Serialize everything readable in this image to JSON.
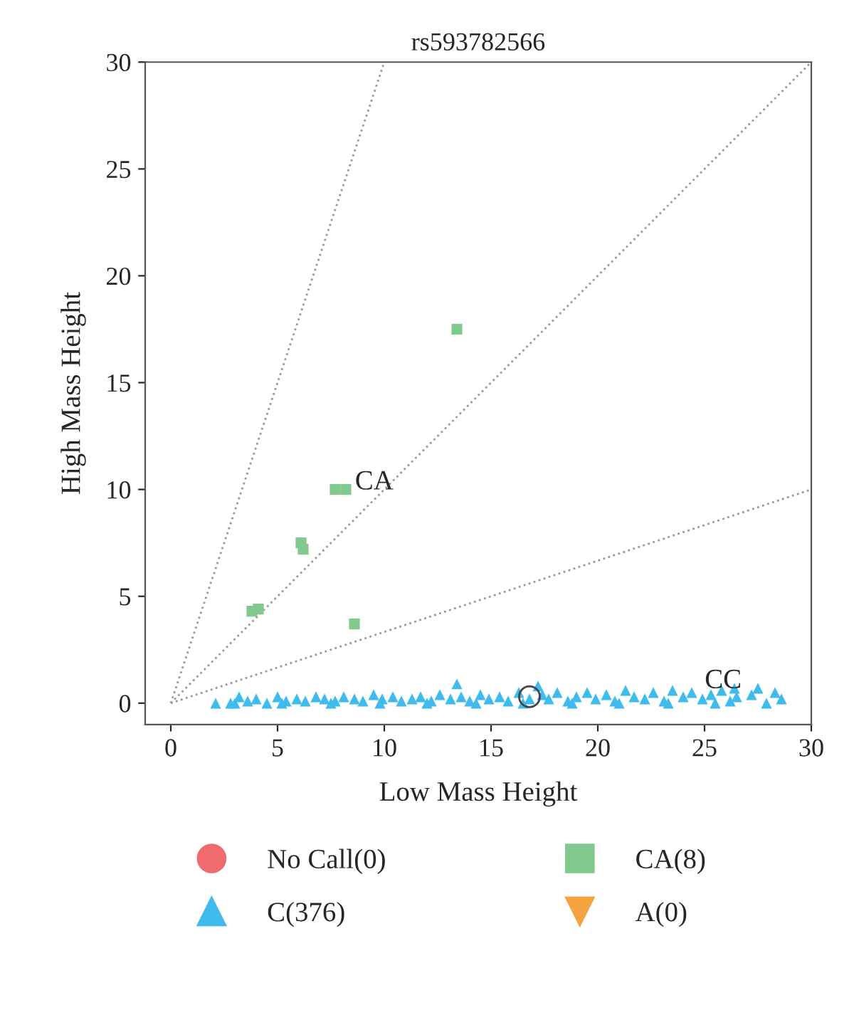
{
  "chart_data": {
    "type": "scatter",
    "title": "rs593782566",
    "xlabel": "Low Mass Height",
    "ylabel": "High Mass Height",
    "xlim": [
      -1.2,
      30
    ],
    "ylim": [
      -1,
      30
    ],
    "xticks": [
      0,
      5,
      10,
      15,
      20,
      25,
      30
    ],
    "yticks": [
      0,
      5,
      10,
      15,
      20,
      25,
      30
    ],
    "grid": false,
    "legend": "bottom",
    "series": [
      {
        "name": "No Call(0)",
        "color": "#ee6b6e",
        "marker": "circle"
      },
      {
        "name": "CA(8)",
        "color": "#82c98d",
        "marker": "square",
        "x": [
          13.4,
          7.7,
          8.2,
          6.1,
          6.2,
          3.8,
          4.1,
          8.6
        ],
        "values": [
          17.5,
          10,
          10,
          7.5,
          7.2,
          4.3,
          4.4,
          3.7
        ]
      },
      {
        "name": "C(376)",
        "color": "#3fbcec",
        "marker": "triangle",
        "x": [
          2.1,
          2.8,
          3.2,
          3.6,
          4.0,
          4.5,
          5.0,
          5.4,
          5.9,
          6.3,
          6.8,
          7.2,
          7.7,
          8.1,
          8.6,
          9.0,
          9.5,
          9.9,
          10.4,
          10.8,
          11.3,
          11.7,
          12.2,
          12.6,
          13.1,
          13.4,
          13.6,
          14.0,
          14.5,
          14.9,
          15.4,
          15.8,
          16.3,
          16.8,
          17.2,
          17.4,
          17.7,
          18.1,
          18.6,
          19.0,
          19.5,
          19.9,
          20.4,
          20.8,
          21.3,
          21.7,
          22.2,
          22.6,
          23.1,
          23.5,
          24.0,
          24.4,
          24.9,
          25.3,
          25.8,
          26.2,
          26.4,
          26.5,
          27.2,
          27.5,
          27.9,
          28.3,
          28.6,
          3.0,
          5.2,
          7.5,
          9.8,
          12.0,
          14.3,
          16.5,
          18.8,
          21.0,
          23.3,
          25.5
        ],
        "values": [
          0.0,
          0.0,
          0.3,
          0.1,
          0.2,
          0.0,
          0.3,
          0.1,
          0.2,
          0.1,
          0.3,
          0.2,
          0.1,
          0.3,
          0.2,
          0.1,
          0.4,
          0.2,
          0.3,
          0.1,
          0.2,
          0.3,
          0.1,
          0.4,
          0.2,
          0.9,
          0.3,
          0.1,
          0.4,
          0.2,
          0.3,
          0.1,
          0.5,
          0.2,
          0.8,
          0.4,
          0.2,
          0.5,
          0.1,
          0.3,
          0.5,
          0.2,
          0.4,
          0.1,
          0.6,
          0.3,
          0.2,
          0.5,
          0.1,
          0.6,
          0.3,
          0.5,
          0.2,
          0.4,
          0.6,
          0.1,
          0.7,
          0.3,
          0.4,
          0.7,
          0.0,
          0.5,
          0.2,
          0.0,
          0.0,
          0.0,
          0.0,
          0.0,
          0.0,
          0.0,
          0.0,
          0.0,
          0.0,
          0.0
        ]
      },
      {
        "name": "A(0)",
        "color": "#f3a33f",
        "marker": "triangle_down"
      },
      {
        "color": "#444444",
        "marker": "open_circle",
        "x": [
          16.8
        ],
        "values": [
          0.3
        ]
      },
      {
        "type": "line",
        "color": "#999999",
        "line_style": "dotted",
        "x": [
          0,
          10
        ],
        "values": [
          0,
          30
        ]
      },
      {
        "type": "line",
        "color": "#999999",
        "line_style": "dotted",
        "x": [
          0,
          30
        ],
        "values": [
          0,
          30
        ]
      },
      {
        "type": "line",
        "color": "#999999",
        "line_style": "dotted",
        "x": [
          0,
          30
        ],
        "values": [
          0,
          10
        ]
      }
    ],
    "annotations": [
      "CA",
      "CC"
    ]
  }
}
